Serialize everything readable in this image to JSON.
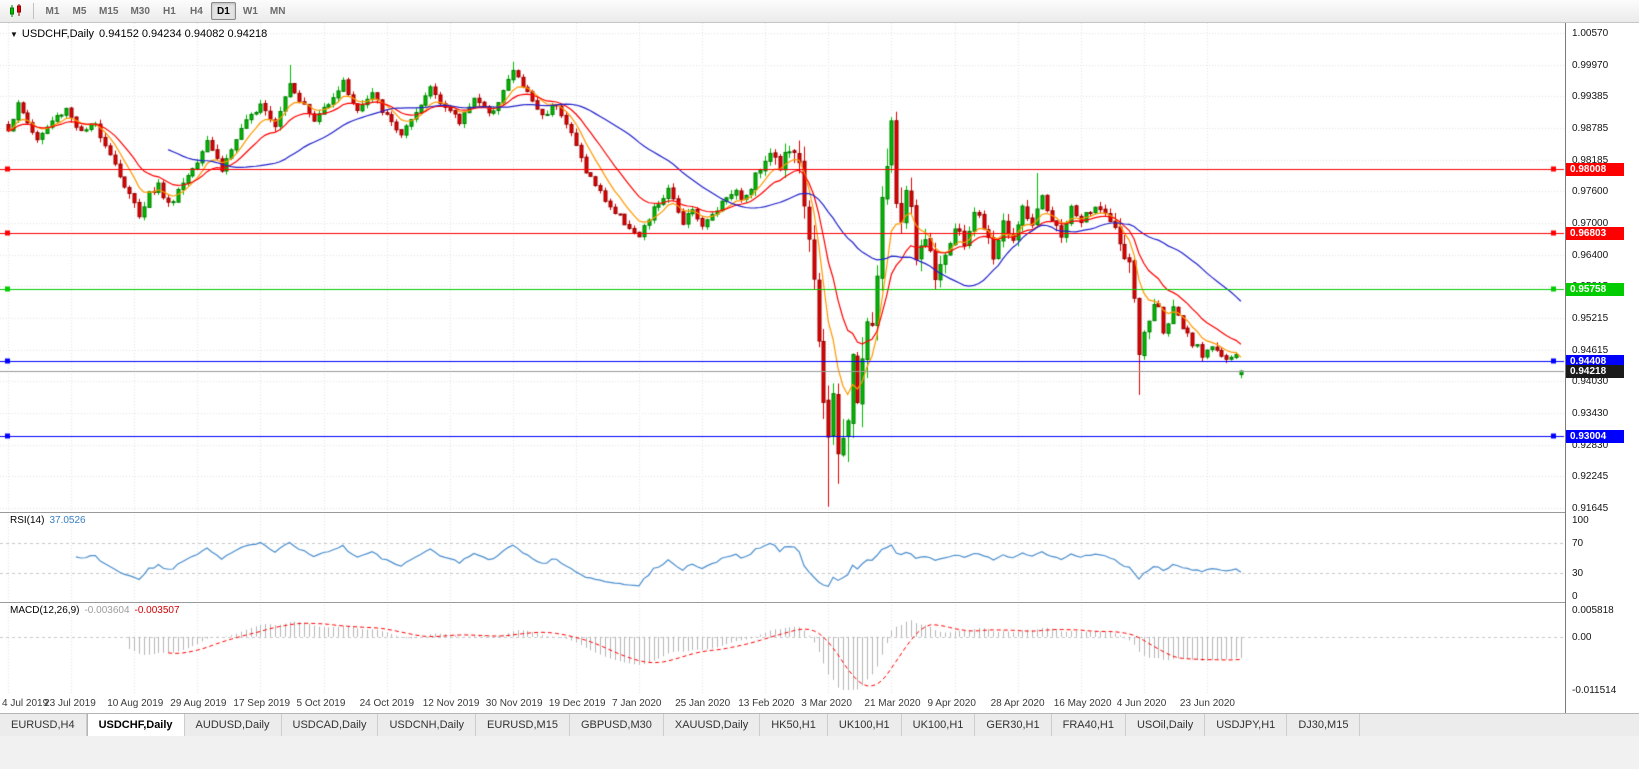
{
  "toolbar": {
    "timeframes": [
      "M1",
      "M5",
      "M15",
      "M30",
      "H1",
      "H4",
      "D1",
      "W1",
      "MN"
    ],
    "active_timeframe": "D1"
  },
  "chart": {
    "dropdown_glyph": "▼",
    "title": "USDCHF,Daily",
    "ohlc_text": "0.94152 0.94234 0.94082 0.94218"
  },
  "indicators": {
    "rsi": {
      "label": "RSI(14)",
      "value": "37.0526"
    },
    "macd": {
      "label": "MACD(12,26,9)",
      "main_value": "-0.003604",
      "signal_value": "-0.003507"
    }
  },
  "tabs": {
    "active_index": 1,
    "items": [
      "EURUSD,H4",
      "USDCHF,Daily",
      "AUDUSD,Daily",
      "USDCAD,Daily",
      "USDCNH,Daily",
      "EURUSD,M15",
      "GBPUSD,M30",
      "XAUUSD,Daily",
      "HK50,H1",
      "UK100,H1",
      "UK100,H1",
      "GER30,H1",
      "FRA40,H1",
      "USOil,Daily",
      "USDJPY,H1",
      "DJ30,M15"
    ],
    "active_tab": "USDCHF,Daily"
  },
  "chart_data": {
    "type": "candlestick",
    "symbol": "USDCHF",
    "timeframe": "Daily",
    "last_bar": {
      "open": 0.94152,
      "high": 0.94234,
      "low": 0.94082,
      "close": 0.94218
    },
    "bar_count": 255,
    "seed": 1337,
    "y_axis": {
      "max": 1.0057,
      "min": 0.91645,
      "ticks": [
        "1.00570",
        "0.99970",
        "0.99385",
        "0.98785",
        "0.98185",
        "0.97600",
        "0.97000",
        "0.96400",
        "0.95815",
        "0.95215",
        "0.94615",
        "0.94030",
        "0.93430",
        "0.92830",
        "0.92245",
        "0.91645"
      ]
    },
    "x_axis": {
      "bars_per_label": 13,
      "labels": [
        "4 Jul 2019",
        "23 Jul 2019",
        "10 Aug 2019",
        "29 Aug 2019",
        "17 Sep 2019",
        "5 Oct 2019",
        "24 Oct 2019",
        "12 Nov 2019",
        "30 Nov 2019",
        "19 Dec 2019",
        "7 Jan 2020",
        "25 Jan 2020",
        "13 Feb 2020",
        "3 Mar 2020",
        "21 Mar 2020",
        "9 Apr 2020",
        "28 Apr 2020",
        "16 May 2020",
        "4 Jun 2020",
        "23 Jun 2020"
      ]
    },
    "close_anchors": [
      [
        0,
        0.9878
      ],
      [
        2,
        0.9921
      ],
      [
        4,
        0.9889
      ],
      [
        6,
        0.9856
      ],
      [
        9,
        0.9891
      ],
      [
        12,
        0.9916
      ],
      [
        15,
        0.9869
      ],
      [
        18,
        0.9884
      ],
      [
        21,
        0.9833
      ],
      [
        24,
        0.9769
      ],
      [
        27,
        0.9717
      ],
      [
        29,
        0.9756
      ],
      [
        31,
        0.9771
      ],
      [
        33,
        0.9734
      ],
      [
        36,
        0.9776
      ],
      [
        39,
        0.9821
      ],
      [
        41,
        0.9859
      ],
      [
        44,
        0.9801
      ],
      [
        47,
        0.9857
      ],
      [
        50,
        0.9901
      ],
      [
        52,
        0.9929
      ],
      [
        55,
        0.9887
      ],
      [
        58,
        0.9966
      ],
      [
        60,
        0.9934
      ],
      [
        63,
        0.9891
      ],
      [
        66,
        0.9929
      ],
      [
        69,
        0.9963
      ],
      [
        72,
        0.9911
      ],
      [
        75,
        0.9941
      ],
      [
        78,
        0.9899
      ],
      [
        81,
        0.9867
      ],
      [
        84,
        0.9901
      ],
      [
        87,
        0.9956
      ],
      [
        90,
        0.9919
      ],
      [
        93,
        0.9889
      ],
      [
        96,
        0.9939
      ],
      [
        99,
        0.9901
      ],
      [
        102,
        0.9949
      ],
      [
        104,
        0.9986
      ],
      [
        107,
        0.9944
      ],
      [
        110,
        0.9901
      ],
      [
        113,
        0.9927
      ],
      [
        116,
        0.9867
      ],
      [
        119,
        0.9799
      ],
      [
        122,
        0.9757
      ],
      [
        125,
        0.9719
      ],
      [
        128,
        0.9694
      ],
      [
        130,
        0.9671
      ],
      [
        133,
        0.9725
      ],
      [
        136,
        0.9759
      ],
      [
        139,
        0.9704
      ],
      [
        141,
        0.9731
      ],
      [
        143,
        0.9691
      ],
      [
        146,
        0.9729
      ],
      [
        149,
        0.9761
      ],
      [
        152,
        0.9747
      ],
      [
        155,
        0.9807
      ],
      [
        157,
        0.9837
      ],
      [
        159,
        0.9804
      ],
      [
        161,
        0.9841
      ],
      [
        163,
        0.9799
      ],
      [
        165,
        0.9689
      ],
      [
        166,
        0.9579
      ],
      [
        167,
        0.9459
      ],
      [
        168,
        0.9349
      ],
      [
        169,
        0.9289
      ],
      [
        170,
        0.9379
      ],
      [
        171,
        0.9254
      ],
      [
        172,
        0.9329
      ],
      [
        173,
        0.9299
      ],
      [
        174,
        0.9419
      ],
      [
        175,
        0.9389
      ],
      [
        176,
        0.9459
      ],
      [
        177,
        0.9549
      ],
      [
        178,
        0.9509
      ],
      [
        179,
        0.9629
      ],
      [
        180,
        0.9739
      ],
      [
        181,
        0.9809
      ],
      [
        182,
        0.9864
      ],
      [
        183,
        0.9744
      ],
      [
        184,
        0.9699
      ],
      [
        185,
        0.9784
      ],
      [
        186,
        0.9714
      ],
      [
        187,
        0.9644
      ],
      [
        189,
        0.9674
      ],
      [
        191,
        0.9609
      ],
      [
        193,
        0.9649
      ],
      [
        195,
        0.9684
      ],
      [
        197,
        0.9659
      ],
      [
        199,
        0.9724
      ],
      [
        201,
        0.9689
      ],
      [
        203,
        0.9639
      ],
      [
        205,
        0.9699
      ],
      [
        207,
        0.9667
      ],
      [
        209,
        0.9724
      ],
      [
        211,
        0.9699
      ],
      [
        213,
        0.9741
      ],
      [
        215,
        0.9699
      ],
      [
        217,
        0.9679
      ],
      [
        219,
        0.9724
      ],
      [
        221,
        0.9704
      ],
      [
        223,
        0.9717
      ],
      [
        225,
        0.9734
      ],
      [
        227,
        0.9699
      ],
      [
        229,
        0.9664
      ],
      [
        231,
        0.9611
      ],
      [
        232,
        0.9569
      ],
      [
        233,
        0.9444
      ],
      [
        234,
        0.9489
      ],
      [
        235,
        0.9519
      ],
      [
        236,
        0.9547
      ],
      [
        237,
        0.9534
      ],
      [
        238,
        0.9504
      ],
      [
        240,
        0.9534
      ],
      [
        242,
        0.9499
      ],
      [
        244,
        0.9471
      ],
      [
        246,
        0.9454
      ],
      [
        248,
        0.9474
      ],
      [
        250,
        0.9449
      ],
      [
        252,
        0.9441
      ],
      [
        253,
        0.9454
      ],
      [
        254,
        0.94218
      ]
    ],
    "volatility_anchors": [
      [
        0,
        0.0017
      ],
      [
        40,
        0.0019
      ],
      [
        80,
        0.0016
      ],
      [
        120,
        0.0016
      ],
      [
        150,
        0.0018
      ],
      [
        158,
        0.0026
      ],
      [
        164,
        0.005
      ],
      [
        168,
        0.008
      ],
      [
        174,
        0.009
      ],
      [
        180,
        0.007
      ],
      [
        186,
        0.005
      ],
      [
        192,
        0.0036
      ],
      [
        200,
        0.0028
      ],
      [
        212,
        0.0024
      ],
      [
        226,
        0.0022
      ],
      [
        231,
        0.004
      ],
      [
        234,
        0.0042
      ],
      [
        238,
        0.0026
      ],
      [
        246,
        0.002
      ],
      [
        254,
        0.0014
      ]
    ],
    "special_bars": {
      "58": {
        "high": 0.9997
      },
      "104": {
        "high": 1.0003
      },
      "169": {
        "low": 0.9167
      },
      "171": {
        "low": 0.921
      },
      "182": {
        "high": 0.9899
      },
      "212": {
        "high": 0.9794
      },
      "233": {
        "low": 0.9377
      },
      "254": {
        "open": 0.94152,
        "high": 0.94234,
        "low": 0.94082,
        "close": 0.94218
      }
    },
    "horizontal_lines": [
      {
        "price": 0.98008,
        "label": "0.98008",
        "color": "#FF0000"
      },
      {
        "price": 0.96803,
        "label": "0.96803",
        "color": "#FF0000"
      },
      {
        "price": 0.95758,
        "label": "0.95758",
        "color": "#00CC00"
      },
      {
        "price": 0.94408,
        "label": "0.94408",
        "color": "#0000FF"
      },
      {
        "price": 0.93004,
        "label": "0.93004",
        "color": "#0000FF"
      }
    ],
    "current_price": {
      "price": 0.94218,
      "label": "0.94218",
      "badge_color": "#1a1a1a",
      "line_color": "#9a9a9a"
    },
    "moving_averages": [
      {
        "period": 7,
        "method": "ema",
        "color": "#FF9900"
      },
      {
        "period": 15,
        "method": "ema",
        "color": "#FF0000"
      },
      {
        "period": 34,
        "method": "sma",
        "color": "#2222CC"
      }
    ],
    "rsi_panel": {
      "period": 14,
      "last_value": 37.0526,
      "line_color": "#4c8fce",
      "levels": [
        70,
        30
      ],
      "ticks": [
        {
          "v": 100,
          "label": "100"
        },
        {
          "v": 70,
          "label": "70"
        },
        {
          "v": 30,
          "label": "30"
        },
        {
          "v": 0,
          "label": "0"
        }
      ]
    },
    "macd_panel": {
      "fast": 12,
      "slow": 26,
      "signal": 9,
      "last_main": -0.003604,
      "last_signal": -0.003507,
      "hist_color": "#b6b6b6",
      "signal_color": "#ff0000",
      "max": 0.005818,
      "min": -0.011514,
      "ticks": [
        {
          "v": 0.005818,
          "label": "0.005818"
        },
        {
          "v": 0,
          "label": "0.00"
        },
        {
          "v": -0.011514,
          "label": "-0.011514"
        }
      ]
    },
    "style": {
      "bg": "#FFFFFF",
      "grid": "#e6e6e6",
      "level_dash": "#c8c8c8",
      "up_fill": "#00be00",
      "up_border": "#007a00",
      "down_fill": "#e80000",
      "down_border": "#8f0000"
    }
  }
}
